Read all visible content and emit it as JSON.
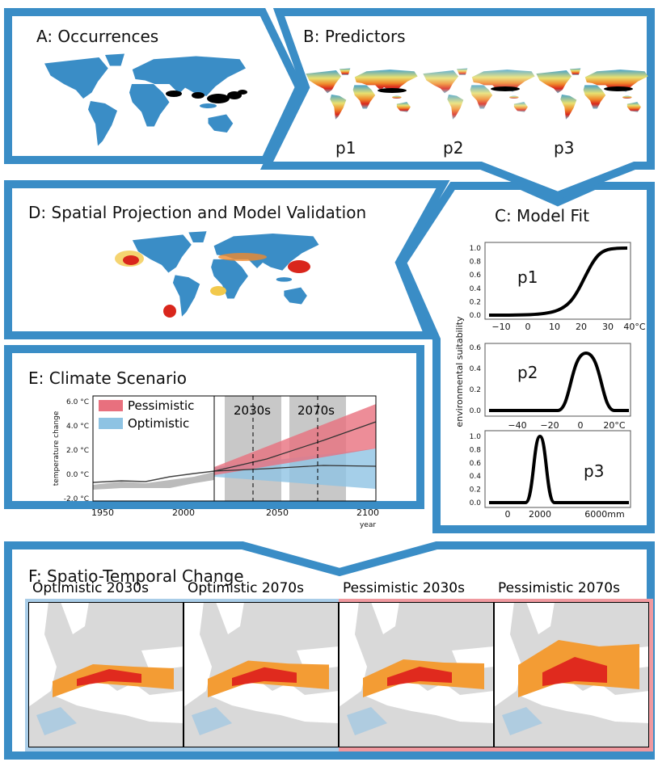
{
  "panels": {
    "a": {
      "title": "A: Occurrences"
    },
    "b": {
      "title": "B: Predictors",
      "labels": [
        "p1",
        "p2",
        "p3"
      ]
    },
    "c": {
      "title": "C: Model Fit",
      "y_label": "environmental suitability",
      "plots": [
        {
          "name": "p1",
          "yticks": [
            "0.0",
            "0.2",
            "0.4",
            "0.6",
            "0.8",
            "1.0"
          ],
          "xticks": [
            "−10",
            "0",
            "10",
            "20",
            "30",
            "40°C"
          ]
        },
        {
          "name": "p2",
          "yticks": [
            "0.0",
            "0.2",
            "0.4",
            "0.6"
          ],
          "xticks": [
            "−40",
            "−20",
            "0",
            "20°C"
          ]
        },
        {
          "name": "p3",
          "yticks": [
            "0.0",
            "0.2",
            "0.4",
            "0.6",
            "0.8",
            "1.0"
          ],
          "xticks": [
            "0",
            "2000",
            "6000mm"
          ]
        }
      ]
    },
    "d": {
      "title": "D: Spatial Projection and Model Validation"
    },
    "e": {
      "title": "E: Climate Scenario",
      "legend": [
        "Pessimistic",
        "Optimistic"
      ],
      "periods": [
        "2030s",
        "2070s"
      ],
      "y_label": "temperature change",
      "yticks": [
        "6.0 °C",
        "4.0 °C",
        "2.0 °C",
        "0.0 °C",
        "-2.0 °C"
      ],
      "xticks": [
        "1950",
        "2000",
        "2050",
        "2100"
      ],
      "x_label": "year"
    },
    "f": {
      "title": "F: Spatio-Temporal Change",
      "maps": [
        "Optimistic 2030s",
        "Optimistic 2070s",
        "Pessimistic 2030s",
        "Pessimistic 2070s"
      ]
    }
  }
}
